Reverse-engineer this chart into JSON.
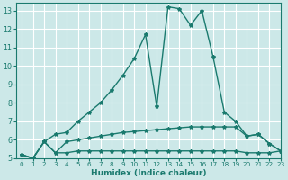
{
  "xlabel": "Humidex (Indice chaleur)",
  "bg_color": "#cce8e8",
  "grid_color": "#ffffff",
  "line_color": "#1a7a6e",
  "xlim": [
    -0.5,
    23
  ],
  "ylim": [
    5,
    13.4
  ],
  "x_ticks": [
    0,
    1,
    2,
    3,
    4,
    5,
    6,
    7,
    8,
    9,
    10,
    11,
    12,
    13,
    14,
    15,
    16,
    17,
    18,
    19,
    20,
    21,
    22,
    23
  ],
  "y_ticks": [
    5,
    6,
    7,
    8,
    9,
    10,
    11,
    12,
    13
  ],
  "line1_x": [
    0,
    1,
    2,
    3,
    4,
    5,
    6,
    7,
    8,
    9,
    10,
    11,
    12,
    13,
    14,
    15,
    16,
    17,
    18,
    19,
    20,
    21,
    22,
    23
  ],
  "line1_y": [
    5.2,
    5.0,
    5.9,
    6.3,
    6.4,
    7.0,
    7.5,
    8.0,
    8.7,
    9.5,
    10.4,
    11.7,
    7.8,
    13.2,
    13.1,
    12.2,
    13.0,
    10.5,
    7.5,
    7.0,
    6.2,
    6.3,
    5.8,
    5.4
  ],
  "line2_x": [
    0,
    1,
    2,
    3,
    4,
    5,
    6,
    7,
    8,
    9,
    10,
    11,
    12,
    13,
    14,
    15,
    16,
    17,
    18,
    19,
    20,
    21,
    22,
    23
  ],
  "line2_y": [
    5.2,
    5.0,
    5.9,
    5.3,
    5.9,
    6.0,
    6.1,
    6.2,
    6.3,
    6.4,
    6.45,
    6.5,
    6.55,
    6.6,
    6.65,
    6.7,
    6.7,
    6.7,
    6.7,
    6.7,
    6.2,
    6.3,
    5.8,
    5.4
  ],
  "line3_x": [
    0,
    1,
    2,
    3,
    4,
    5,
    6,
    7,
    8,
    9,
    10,
    11,
    12,
    13,
    14,
    15,
    16,
    17,
    18,
    19,
    20,
    21,
    22,
    23
  ],
  "line3_y": [
    5.2,
    5.0,
    5.9,
    5.3,
    5.3,
    5.4,
    5.4,
    5.4,
    5.4,
    5.4,
    5.4,
    5.4,
    5.4,
    5.4,
    5.4,
    5.4,
    5.4,
    5.4,
    5.4,
    5.4,
    5.3,
    5.3,
    5.3,
    5.4
  ]
}
